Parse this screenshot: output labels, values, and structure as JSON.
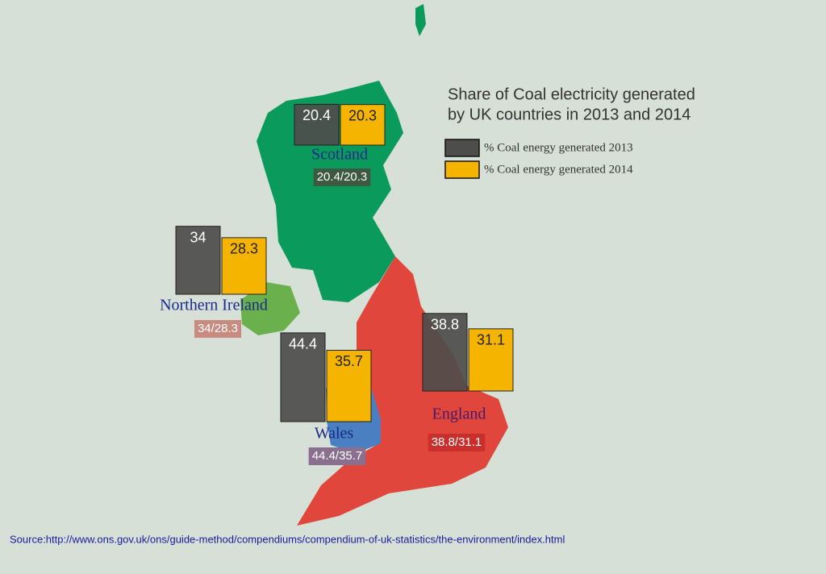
{
  "title": [
    "Share of Coal electricity generated",
    "by UK countries in 2013 and 2014"
  ],
  "legend": [
    {
      "label": "% Coal energy generated 2013",
      "color": "#4d4d4b"
    },
    {
      "label": "% Coal energy generated 2014",
      "color": "#f5b400"
    }
  ],
  "regions": [
    {
      "name": "Scotland",
      "values": [
        20.4,
        20.3
      ],
      "combined_label": "20.4/20.3"
    },
    {
      "name": "Northern Ireland",
      "values": [
        34,
        28.3
      ],
      "combined_label": "34/28.3"
    },
    {
      "name": "Wales",
      "values": [
        44.4,
        35.7
      ],
      "combined_label": "44.4/35.7"
    },
    {
      "name": "England",
      "values": [
        38.8,
        31.1
      ],
      "combined_label": "38.8/31.1"
    }
  ],
  "source": "Source:http://www.ons.gov.uk/ons/guide-method/compendiums/compendium-of-uk-statistics/the-environment/index.html"
}
